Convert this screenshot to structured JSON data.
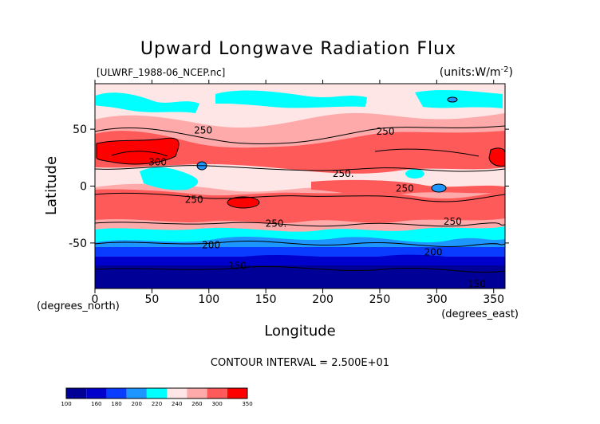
{
  "chart_data": {
    "type": "heatmap",
    "title": "Upward Longwave Radiation Flux",
    "subtitle_left": "[ULWRF_1988-06_NCEP.nc]",
    "subtitle_right": "(units:W/m^-2)",
    "xlabel": "Longitude",
    "ylabel": "Latitude",
    "x_unit_label": "(degrees_east)",
    "y_unit_label": "(degrees_north)",
    "xlim": [
      0,
      360
    ],
    "ylim": [
      -90,
      90
    ],
    "x_ticks": [
      0,
      50,
      100,
      150,
      200,
      250,
      300,
      350
    ],
    "y_ticks": [
      -50,
      0,
      50
    ],
    "contour_interval_text": "CONTOUR INTERVAL = 2.500E+01",
    "contour_labels": [
      {
        "text": "250",
        "x": 95,
        "y": 49
      },
      {
        "text": "300",
        "x": 55,
        "y": 21
      },
      {
        "text": "250",
        "x": 255,
        "y": 48
      },
      {
        "text": "250.",
        "x": 218,
        "y": 11
      },
      {
        "text": "250",
        "x": 272,
        "y": -2
      },
      {
        "text": "250",
        "x": 87,
        "y": -12
      },
      {
        "text": "250.",
        "x": 159,
        "y": -33
      },
      {
        "text": "250",
        "x": 314,
        "y": -31
      },
      {
        "text": "200",
        "x": 102,
        "y": -52
      },
      {
        "text": "200",
        "x": 297,
        "y": -58
      },
      {
        "text": "150",
        "x": 125,
        "y": -70
      },
      {
        "text": "150",
        "x": 335,
        "y": -86
      }
    ],
    "colorbar": {
      "ticks": [
        "100",
        "160",
        "180",
        "200",
        "220",
        "240",
        "260",
        "300",
        "350"
      ],
      "colors": [
        "#000096",
        "#0000cd",
        "#0a3cff",
        "#1e96ff",
        "#00ffff",
        "#ffe6e6",
        "#ffaaaa",
        "#ff5a5a",
        "#ff0000"
      ]
    }
  }
}
